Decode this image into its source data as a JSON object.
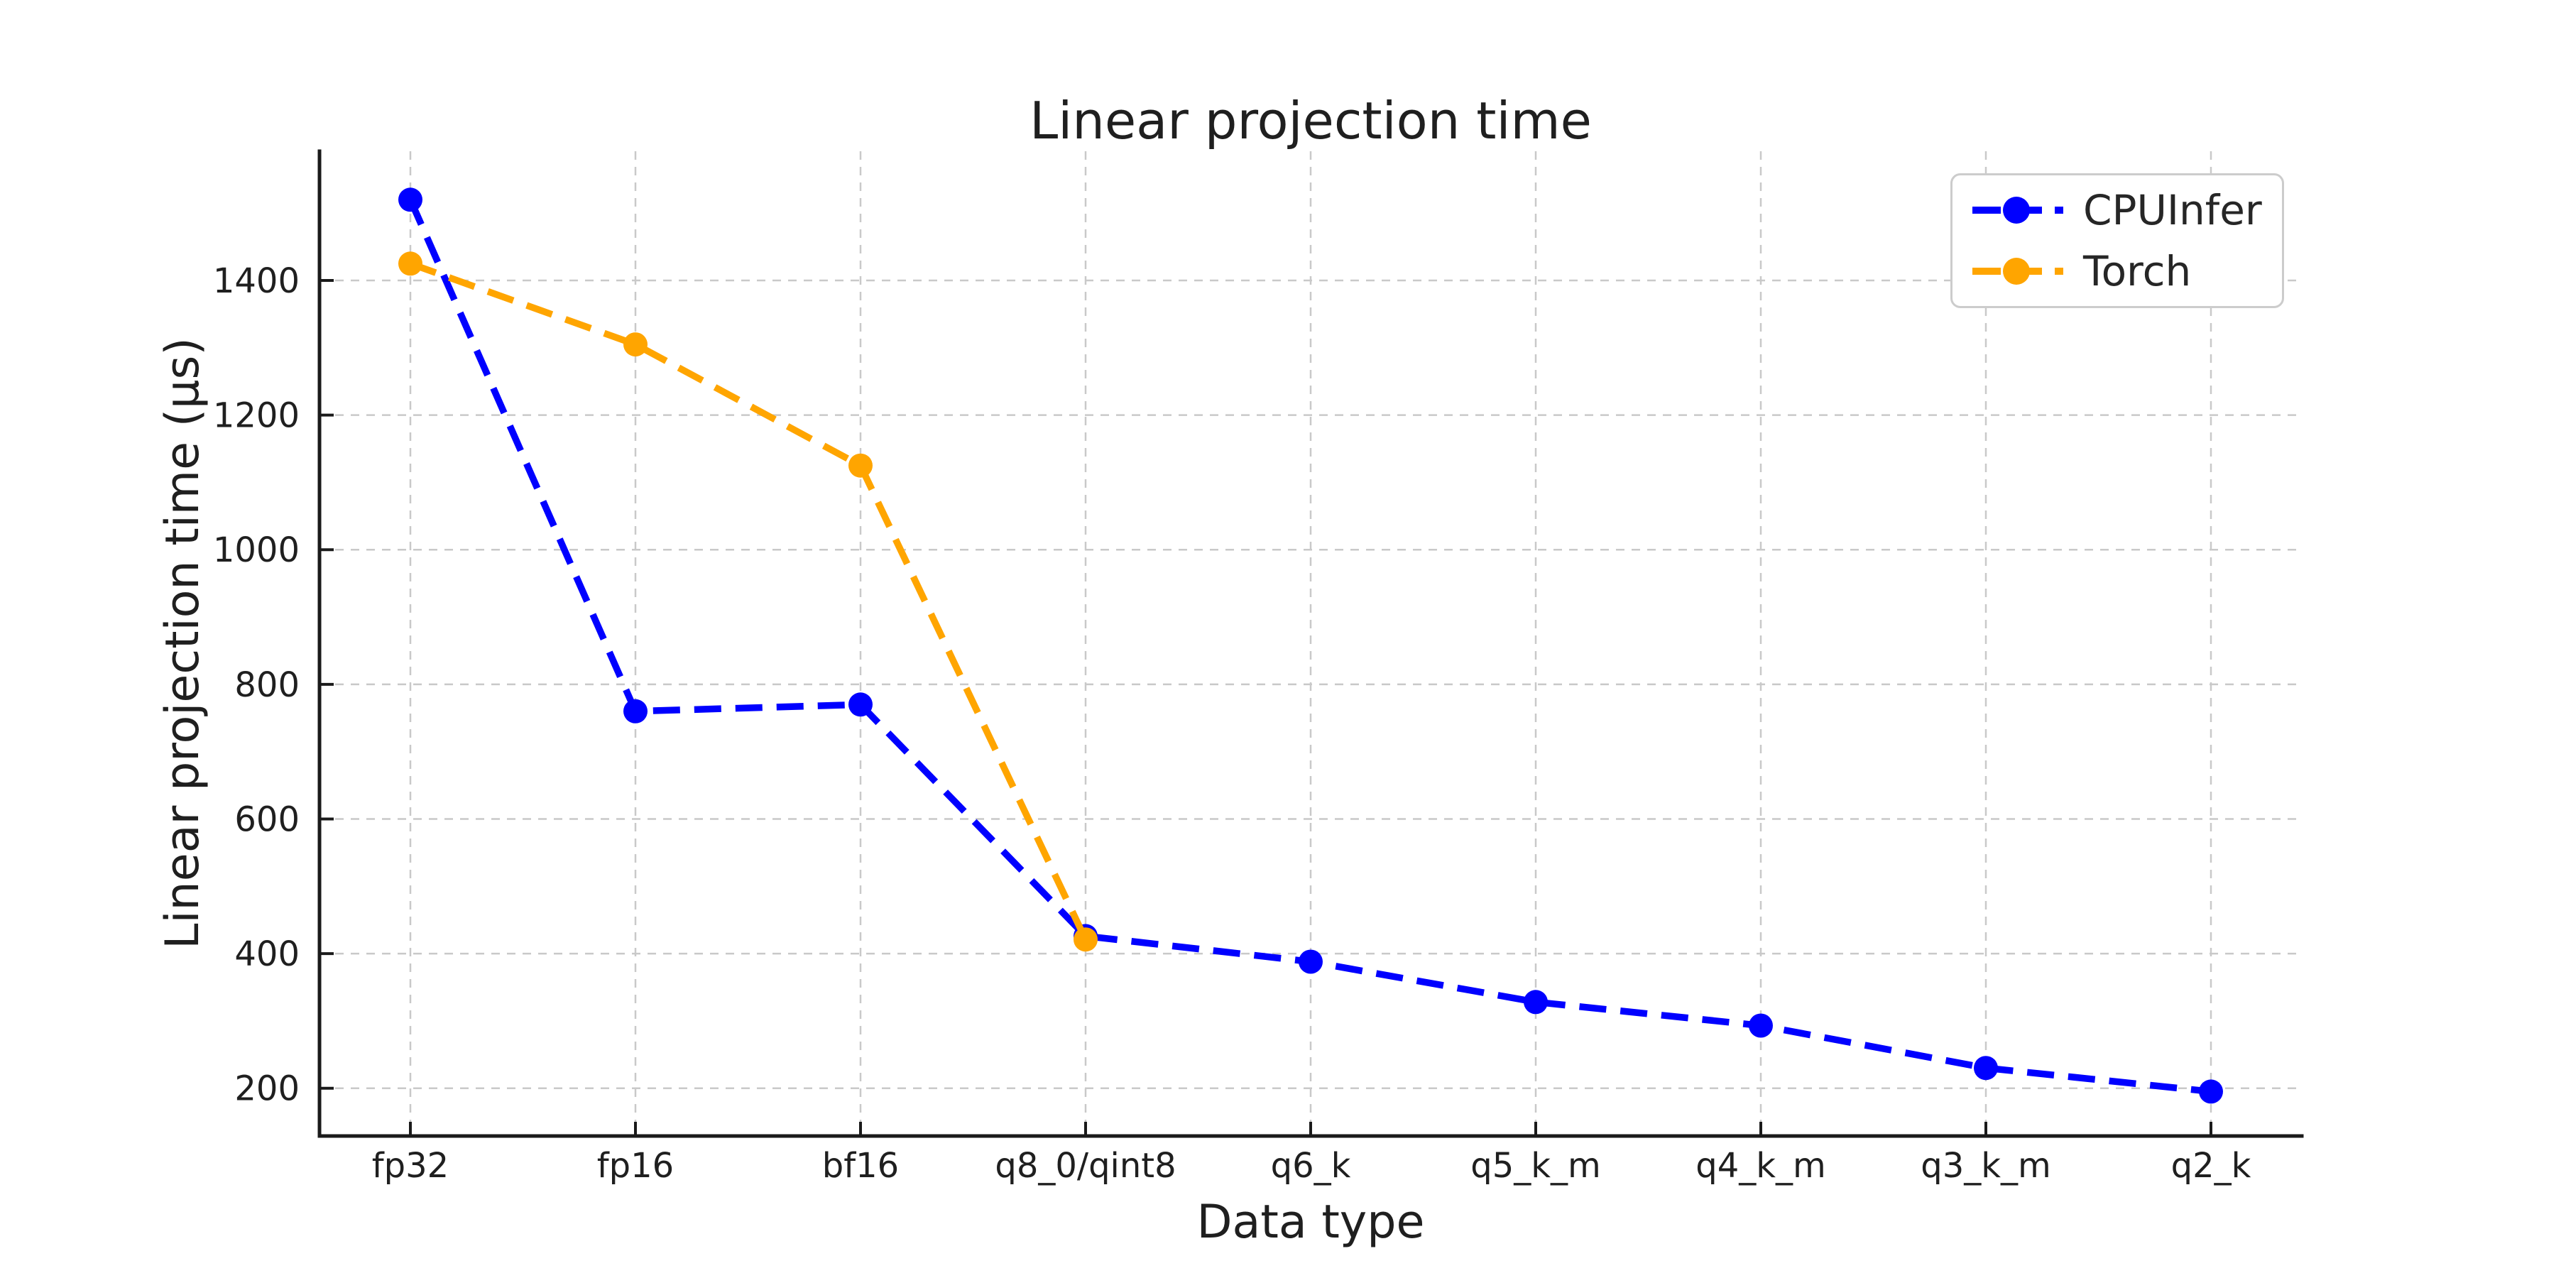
{
  "chart_data": {
    "type": "line",
    "title": "Linear projection time",
    "xlabel": "Data type",
    "ylabel": "Linear projection time (µs)",
    "categories": [
      "fp32",
      "fp16",
      "bf16",
      "q8_0/qint8",
      "q6_k",
      "q5_k_m",
      "q4_k_m",
      "q3_k_m",
      "q2_k"
    ],
    "series": [
      {
        "name": "CPUInfer",
        "color": "#0000ff",
        "values": [
          1520,
          760,
          770,
          426,
          388,
          328,
          293,
          230,
          195
        ]
      },
      {
        "name": "Torch",
        "color": "#ffa500",
        "values": [
          1425,
          1305,
          1125,
          421
        ]
      }
    ],
    "yticks": [
      200,
      400,
      600,
      800,
      1000,
      1200,
      1400
    ],
    "ylim": [
      129,
      1592
    ],
    "grid": true,
    "grid_style": "dashed",
    "line_style": "dashed",
    "marker": "circle",
    "legend_position": "upper right"
  },
  "colors": {
    "grid": "#c9c9c9",
    "spine": "#1a1a1a",
    "text": "#1f1f1f",
    "background": "#ffffff",
    "legend_border": "#cccccc"
  }
}
